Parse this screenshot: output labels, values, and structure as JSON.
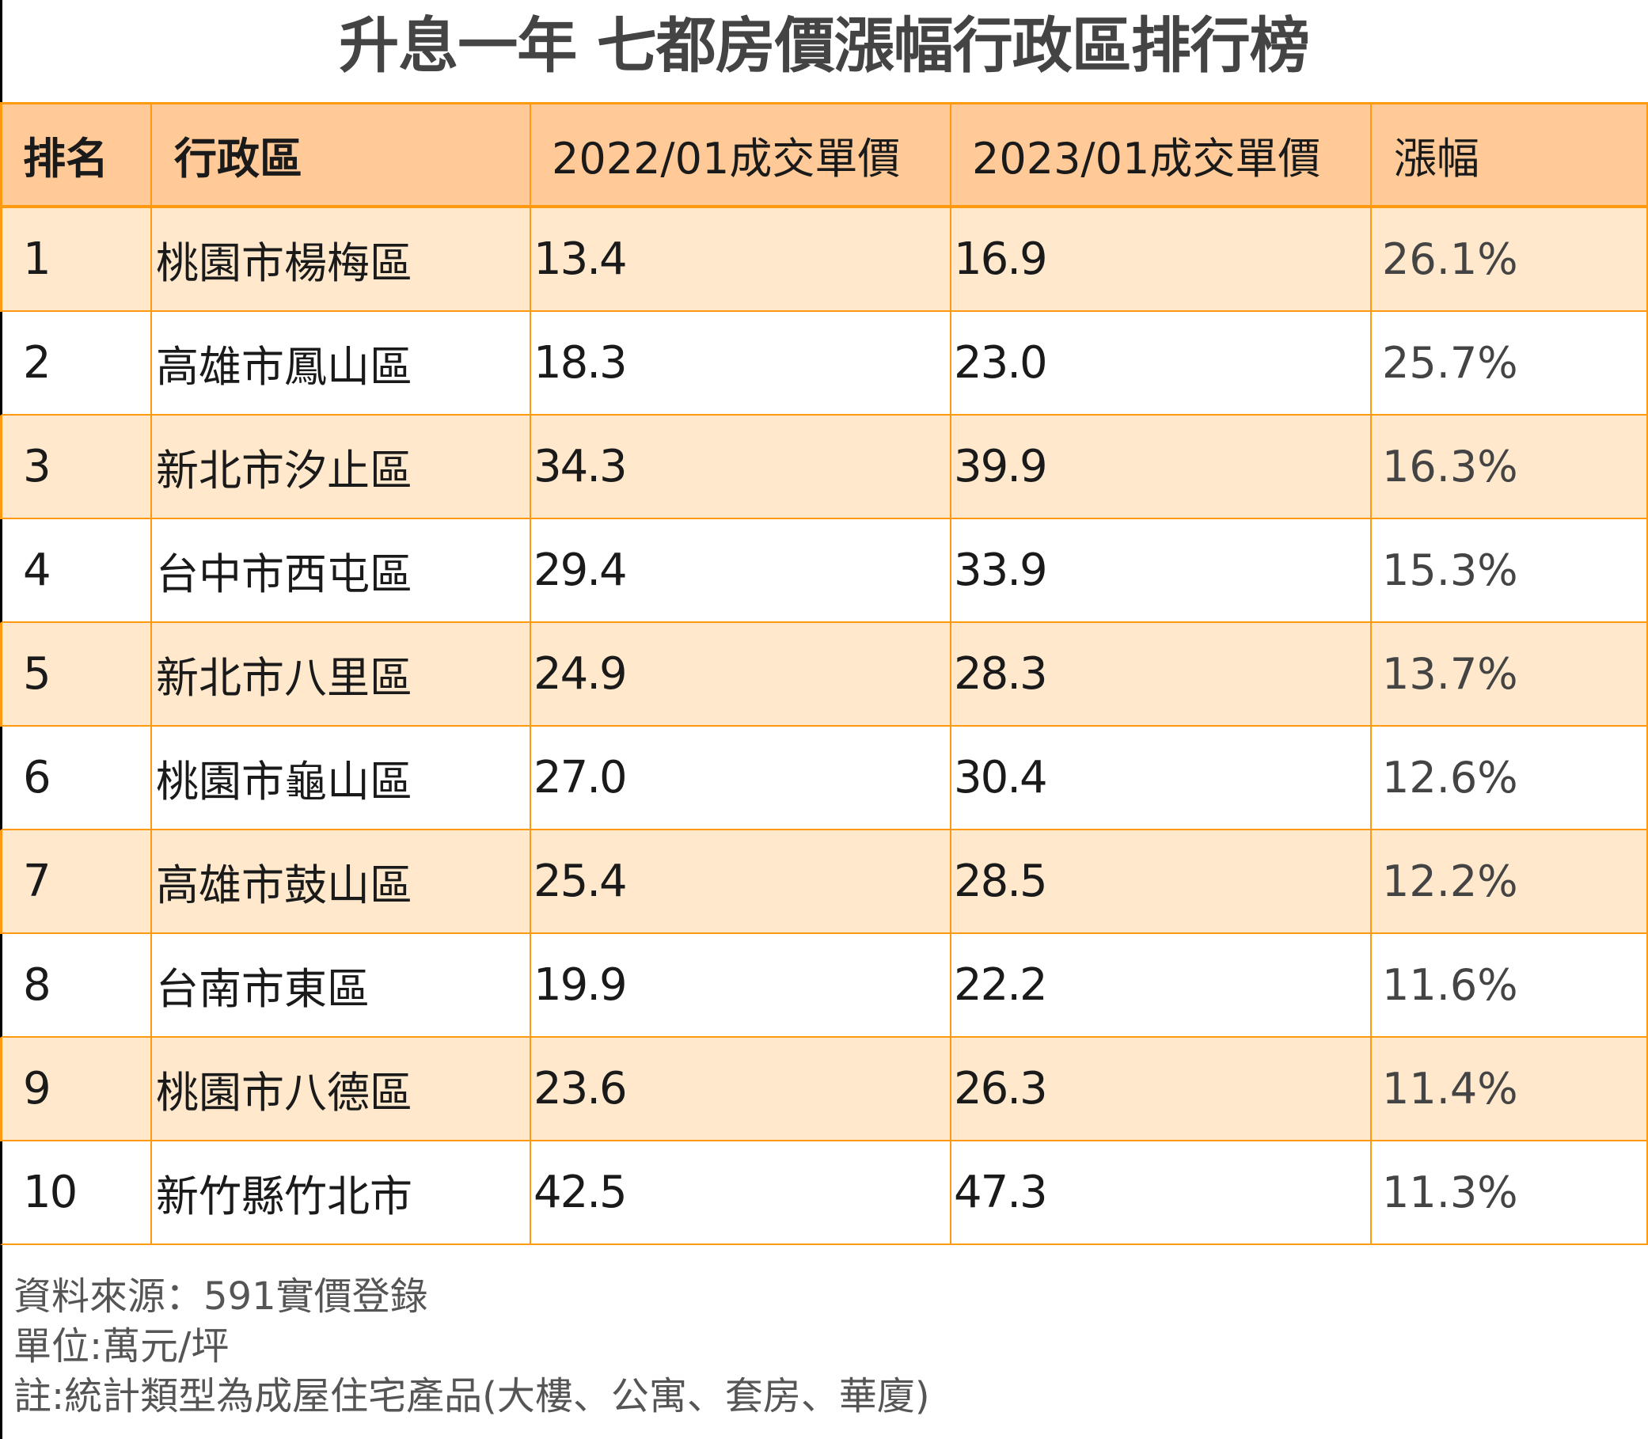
{
  "title": "升息一年 七都房價漲幅行政區排行榜",
  "table": {
    "headers": [
      "排名",
      "行政區",
      "2022/01成交單價",
      "2023/01成交單價",
      "漲幅"
    ],
    "rows": [
      {
        "rank": "1",
        "district": "桃園市楊梅區",
        "price_2022": "13.4",
        "price_2023": "16.9",
        "change": "26.1%"
      },
      {
        "rank": "2",
        "district": "高雄市鳳山區",
        "price_2022": "18.3",
        "price_2023": "23.0",
        "change": "25.7%"
      },
      {
        "rank": "3",
        "district": "新北市汐止區",
        "price_2022": "34.3",
        "price_2023": "39.9",
        "change": "16.3%"
      },
      {
        "rank": "4",
        "district": "台中市西屯區",
        "price_2022": "29.4",
        "price_2023": "33.9",
        "change": "15.3%"
      },
      {
        "rank": "5",
        "district": "新北市八里區",
        "price_2022": "24.9",
        "price_2023": "28.3",
        "change": "13.7%"
      },
      {
        "rank": "6",
        "district": "桃園市龜山區",
        "price_2022": "27.0",
        "price_2023": "30.4",
        "change": "12.6%"
      },
      {
        "rank": "7",
        "district": "高雄市鼓山區",
        "price_2022": "25.4",
        "price_2023": "28.5",
        "change": "12.2%"
      },
      {
        "rank": "8",
        "district": "台南市東區",
        "price_2022": "19.9",
        "price_2023": "22.2",
        "change": "11.6%"
      },
      {
        "rank": "9",
        "district": "桃園市八德區",
        "price_2022": "23.6",
        "price_2023": "26.3",
        "change": "11.4%"
      },
      {
        "rank": "10",
        "district": "新竹縣竹北市",
        "price_2022": "42.5",
        "price_2023": "47.3",
        "change": "11.3%"
      }
    ]
  },
  "footer": {
    "source": "資料來源：591實價登錄",
    "unit": "單位:萬元/坪",
    "note": "註:統計類型為成屋住宅產品(大樓、公寓、套房、華廈)"
  },
  "colors": {
    "header_bg": "#FFCA97",
    "odd_row_bg": "#FFE8CC",
    "border": "#FF9A10",
    "title": "#444444"
  }
}
